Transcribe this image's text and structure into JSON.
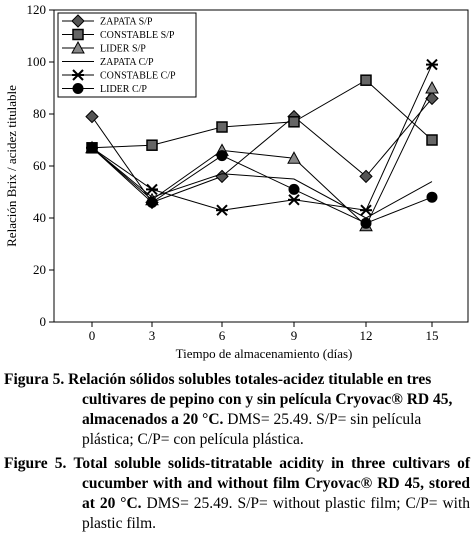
{
  "chart_data": {
    "type": "line",
    "x": [
      0,
      3,
      6,
      9,
      12,
      15
    ],
    "xticks": [
      "0",
      "3",
      "6",
      "9",
      "12",
      "15"
    ],
    "yticks": [
      "0",
      "20",
      "40",
      "60",
      "80",
      "100",
      "120"
    ],
    "ylim": [
      0,
      120
    ],
    "xlabel": "Tiempo de almacenamiento (días)",
    "ylabel": "Relación Brix / acidez titulable",
    "legend_position": "top-left",
    "series": [
      {
        "name": "ZAPATA S/P",
        "marker": "diamond",
        "values": [
          79,
          46,
          56,
          79,
          56,
          86
        ]
      },
      {
        "name": "CONSTABLE S/P",
        "marker": "square",
        "values": [
          67,
          68,
          75,
          77,
          93,
          70
        ]
      },
      {
        "name": "LIDER S/P",
        "marker": "triangle",
        "values": [
          67,
          47,
          66,
          63,
          37,
          90
        ]
      },
      {
        "name": "ZAPATA C/P",
        "marker": "none",
        "values": [
          67,
          48,
          57,
          55,
          40,
          54
        ]
      },
      {
        "name": "CONSTABLE C/P",
        "marker": "star",
        "values": [
          67,
          51,
          43,
          47,
          43,
          99
        ]
      },
      {
        "name": "LIDER C/P",
        "marker": "circle",
        "values": [
          67,
          46,
          64,
          51,
          38,
          48
        ]
      }
    ]
  },
  "caption_es": {
    "label": "Figura 5.",
    "bold_text": "Relación sólidos solubles totales-acidez titulable en tres cultivares de pepino con y sin película Cryovac® RD 45, almacenados a 20 °C.",
    "rest": "DMS= 25.49. S/P= sin película plástica; C/P= con película plástica."
  },
  "caption_en": {
    "label": "Figure 5.",
    "bold_text": "Total soluble solids-titratable acidity in three cultivars of cucumber with and without film Cryovac® RD 45, stored at 20 °C.",
    "rest": "DMS= 25.49. S/P= without plastic film; C/P= with plastic film."
  }
}
